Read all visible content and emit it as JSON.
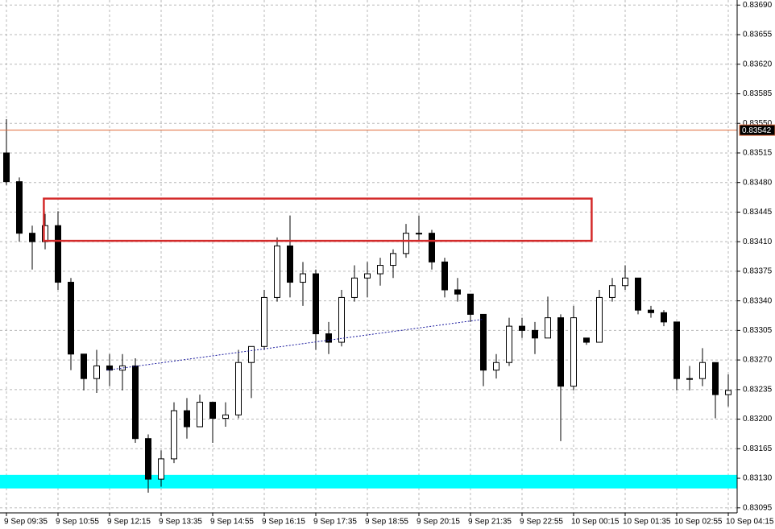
{
  "chart_data": {
    "type": "candlestick",
    "categories": [
      "9 Sep 09:35",
      null,
      null,
      null,
      "9 Sep 10:55",
      null,
      null,
      null,
      "9 Sep 12:15",
      null,
      null,
      null,
      "9 Sep 13:35",
      null,
      null,
      null,
      "9 Sep 14:55",
      null,
      null,
      null,
      "9 Sep 16:15",
      null,
      null,
      null,
      "9 Sep 17:35",
      null,
      null,
      null,
      "9 Sep 18:55",
      null,
      null,
      null,
      "9 Sep 20:15",
      null,
      null,
      null,
      "9 Sep 21:35",
      null,
      null,
      null,
      "9 Sep 22:55",
      null,
      null,
      null,
      "10 Sep 00:15",
      null,
      null,
      null,
      "10 Sep 01:35",
      null,
      null,
      null,
      "10 Sep 02:55",
      null,
      null,
      null,
      "10 Sep 04:15"
    ],
    "open": [
      0.83515,
      0.83481,
      0.8342,
      0.8341,
      0.83429,
      0.83362,
      0.83277,
      0.83248,
      0.83263,
      0.83258,
      0.83263,
      0.83177,
      0.83129,
      0.83153,
      0.8321,
      0.83191,
      0.8322,
      0.83201,
      0.83205,
      0.83267,
      0.83286,
      0.83344,
      0.83405,
      0.83362,
      0.83372,
      0.83301,
      0.83291,
      0.83344,
      0.83367,
      0.83372,
      0.83382,
      0.83396,
      0.8342,
      0.8342,
      0.83386,
      0.83353,
      0.83348,
      0.83324,
      0.83258,
      0.83267,
      0.8331,
      0.83305,
      0.83296,
      0.8332,
      0.83239,
      0.83296,
      0.83291,
      0.83344,
      0.83358,
      0.83367,
      0.83329,
      0.83326,
      0.83315,
      0.83248,
      0.83248,
      0.83267,
      0.83229
    ],
    "high": [
      0.83555,
      0.83486,
      0.83429,
      0.83443,
      0.83446,
      0.83367,
      0.83277,
      0.83282,
      0.83277,
      0.83277,
      0.83272,
      0.83182,
      0.83163,
      0.8322,
      0.83225,
      0.83229,
      0.8322,
      0.8322,
      0.83282,
      0.83286,
      0.83353,
      0.83415,
      0.83441,
      0.83386,
      0.83377,
      0.83315,
      0.83353,
      0.83382,
      0.83386,
      0.83391,
      0.83401,
      0.83431,
      0.83441,
      0.83424,
      0.83391,
      0.83367,
      0.83348,
      0.83324,
      0.83277,
      0.8332,
      0.8332,
      0.83315,
      0.83345,
      0.83324,
      0.83334,
      0.83296,
      0.83353,
      0.83367,
      0.83382,
      0.83367,
      0.83334,
      0.83329,
      0.83315,
      0.83263,
      0.83284,
      0.83267,
      0.83253
    ],
    "low": [
      0.83477,
      0.8341,
      0.83377,
      0.83401,
      0.83353,
      0.83258,
      0.83234,
      0.83231,
      0.83239,
      0.83234,
      0.83172,
      0.83113,
      0.8312,
      0.83148,
      0.83177,
      0.83191,
      0.83172,
      0.83191,
      0.83201,
      0.83225,
      0.83282,
      0.83339,
      0.83344,
      0.83334,
      0.83282,
      0.83277,
      0.83286,
      0.83339,
      0.83344,
      0.83358,
      0.83367,
      0.83391,
      0.8341,
      0.83377,
      0.83344,
      0.83339,
      0.83315,
      0.83239,
      0.83248,
      0.83263,
      0.83296,
      0.83277,
      0.83296,
      0.83174,
      0.83234,
      0.83288,
      0.83291,
      0.83339,
      0.83353,
      0.83324,
      0.8332,
      0.8331,
      0.83234,
      0.83234,
      0.83239,
      0.83201,
      0.83215
    ],
    "close": [
      0.83481,
      0.8342,
      0.8341,
      0.83429,
      0.83362,
      0.83277,
      0.83248,
      0.83263,
      0.83258,
      0.83263,
      0.83177,
      0.83129,
      0.83153,
      0.8321,
      0.83191,
      0.8322,
      0.83201,
      0.83205,
      0.83267,
      0.83286,
      0.83344,
      0.83405,
      0.83362,
      0.83372,
      0.83301,
      0.83291,
      0.83344,
      0.83367,
      0.83372,
      0.83382,
      0.83396,
      0.8342,
      0.8342,
      0.83386,
      0.83353,
      0.83348,
      0.83324,
      0.83258,
      0.83267,
      0.8331,
      0.83305,
      0.83296,
      0.8332,
      0.83239,
      0.8332,
      0.83291,
      0.83344,
      0.83358,
      0.83367,
      0.83329,
      0.83326,
      0.83315,
      0.83248,
      0.83248,
      0.83267,
      0.83229,
      0.83234
    ],
    "ylim": [
      0.8307,
      0.83696
    ],
    "yticks": [
      {
        "value": 0.8369,
        "label": "0.83690"
      },
      0.83655,
      {
        "value": 0.8362,
        "label": "0.83620"
      },
      0.83585,
      {
        "value": 0.8355,
        "label": "0.83550"
      },
      0.83515,
      {
        "value": 0.8348,
        "label": "0.83480"
      },
      0.83445,
      {
        "value": 0.8341,
        "label": "0.83410"
      },
      0.83375,
      {
        "value": 0.8334,
        "label": "0.83340"
      },
      0.83305,
      {
        "value": 0.8327,
        "label": "0.83270"
      },
      0.83235,
      {
        "value": 0.832,
        "label": "0.83200"
      },
      0.83165,
      {
        "value": 0.8313,
        "label": "0.83130"
      },
      0.83095
    ],
    "grid": true,
    "price_line": 0.83542,
    "price_line_color": "#e06a3a",
    "rectangle": {
      "x": [
        2.9,
        45.4
      ],
      "y": [
        0.83411,
        0.83461
      ],
      "color": "#d42a2a"
    },
    "zone": {
      "y": [
        0.83118,
        0.83134
      ],
      "color": "#00ffff"
    },
    "trendline": {
      "x": [
        7.8,
        36.9
      ],
      "y": [
        0.83258,
        0.83318
      ],
      "color": "#1a1a9e"
    }
  }
}
